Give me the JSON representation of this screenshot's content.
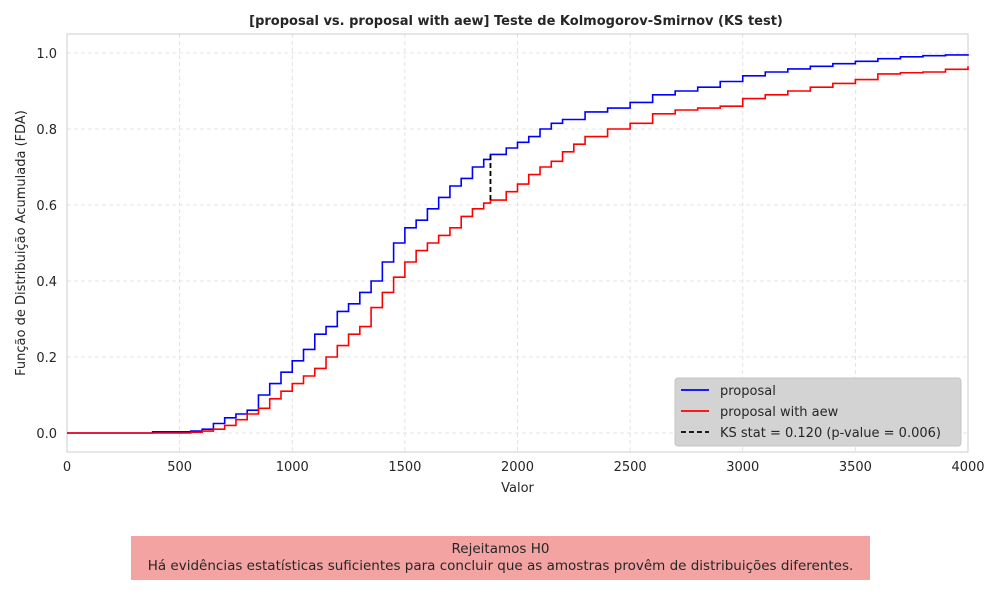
{
  "chart_data": {
    "type": "line",
    "title": "[proposal vs. proposal with aew] Teste de Kolmogorov-Smirnov (KS test)",
    "xlabel": "Valor",
    "ylabel": "Função de Distribuição Acumulada (FDA)",
    "xlim": [
      0,
      4000
    ],
    "ylim": [
      -0.05,
      1.05
    ],
    "xticks": [
      0,
      500,
      1000,
      1500,
      2000,
      2500,
      3000,
      3500,
      4000
    ],
    "xtick_labels": [
      "0",
      "500",
      "1000",
      "1500",
      "2000",
      "2500",
      "3000",
      "3500",
      "4000"
    ],
    "yticks": [
      0.0,
      0.2,
      0.4,
      0.6,
      0.8,
      1.0
    ],
    "ytick_labels": [
      "0.0",
      "0.2",
      "0.4",
      "0.6",
      "0.8",
      "1.0"
    ],
    "grid": true,
    "legend_position": "lower-right",
    "series": [
      {
        "name": "proposal",
        "color": "#0000ff",
        "style": "step",
        "x": [
          0,
          380,
          550,
          600,
          650,
          700,
          750,
          800,
          850,
          900,
          950,
          1000,
          1050,
          1100,
          1150,
          1200,
          1250,
          1300,
          1350,
          1400,
          1450,
          1500,
          1550,
          1600,
          1650,
          1700,
          1750,
          1800,
          1850,
          1880,
          1950,
          2000,
          2050,
          2100,
          2150,
          2200,
          2300,
          2400,
          2500,
          2600,
          2700,
          2800,
          2900,
          3000,
          3100,
          3200,
          3300,
          3400,
          3500,
          3600,
          3700,
          3800,
          3900,
          4000
        ],
        "y": [
          0.0,
          0.003,
          0.005,
          0.01,
          0.025,
          0.04,
          0.05,
          0.06,
          0.1,
          0.13,
          0.16,
          0.19,
          0.22,
          0.26,
          0.28,
          0.32,
          0.34,
          0.37,
          0.4,
          0.45,
          0.5,
          0.54,
          0.56,
          0.59,
          0.62,
          0.65,
          0.67,
          0.7,
          0.72,
          0.733,
          0.75,
          0.765,
          0.78,
          0.8,
          0.815,
          0.825,
          0.845,
          0.855,
          0.87,
          0.89,
          0.9,
          0.91,
          0.925,
          0.94,
          0.95,
          0.958,
          0.965,
          0.972,
          0.978,
          0.985,
          0.99,
          0.993,
          0.995,
          0.997
        ]
      },
      {
        "name": "proposal with aew",
        "color": "#ff0000",
        "style": "step",
        "x": [
          0,
          550,
          600,
          650,
          700,
          750,
          800,
          850,
          900,
          950,
          1000,
          1050,
          1100,
          1150,
          1200,
          1250,
          1300,
          1350,
          1400,
          1450,
          1500,
          1550,
          1600,
          1650,
          1700,
          1750,
          1800,
          1850,
          1880,
          1950,
          2000,
          2050,
          2100,
          2150,
          2200,
          2250,
          2300,
          2400,
          2500,
          2600,
          2700,
          2800,
          2900,
          3000,
          3100,
          3200,
          3300,
          3400,
          3500,
          3600,
          3700,
          3800,
          3900,
          4000
        ],
        "y": [
          0.0,
          0.002,
          0.005,
          0.01,
          0.02,
          0.035,
          0.05,
          0.065,
          0.09,
          0.11,
          0.13,
          0.15,
          0.17,
          0.2,
          0.23,
          0.26,
          0.28,
          0.33,
          0.37,
          0.41,
          0.45,
          0.48,
          0.5,
          0.52,
          0.54,
          0.57,
          0.59,
          0.605,
          0.613,
          0.635,
          0.655,
          0.68,
          0.7,
          0.715,
          0.74,
          0.76,
          0.78,
          0.8,
          0.815,
          0.84,
          0.85,
          0.855,
          0.86,
          0.88,
          0.89,
          0.9,
          0.91,
          0.92,
          0.93,
          0.945,
          0.948,
          0.95,
          0.957,
          0.965
        ]
      }
    ],
    "ks_line": {
      "name": "KS stat = 0.120 (p-value = 0.006)",
      "color": "#000000",
      "x": 1880,
      "y_from": 0.613,
      "y_to": 0.733
    }
  },
  "conclusion": {
    "line1": "Rejeitamos H0",
    "line2": "Há evidências estatísticas suficientes para concluir que as amostras provêm de distribuições diferentes.",
    "color": "#f4a3a3"
  }
}
